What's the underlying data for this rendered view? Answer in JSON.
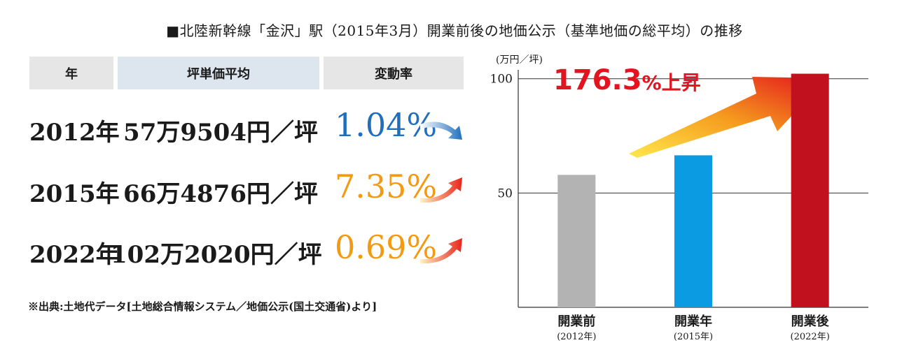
{
  "title": "■北陸新幹線「金沢」駅（2015年3月）開業前後の地価公示（基準地価の総平均）の推移",
  "table": {
    "headers": [
      "年",
      "坪単価平均",
      "変動率"
    ],
    "rows": [
      {
        "year": "2012年",
        "price": "57万9504円／坪",
        "rate": "1.04%",
        "trend": "down",
        "color": "#1f6fbe"
      },
      {
        "year": "2015年",
        "price": "66万4876円／坪",
        "rate": "7.35%",
        "trend": "up",
        "color": "#f39a12"
      },
      {
        "year": "2022年",
        "price": "102万2020円／坪",
        "rate": "0.69%",
        "trend": "up",
        "color": "#f39a12"
      }
    ]
  },
  "note": "※出典:土地代データ[土地総合情報システム／地価公示(国土交通省)より]",
  "chart_data": {
    "type": "bar",
    "unit_label": "(万円／坪)",
    "categories": [
      "開業前",
      "開業年",
      "開業後"
    ],
    "sub_labels": [
      "(2012年)",
      "(2015年)",
      "(2022年)"
    ],
    "values": [
      57.95,
      66.49,
      102.2
    ],
    "colors": [
      "#b3b3b3",
      "#0a9be2",
      "#c1111f"
    ],
    "yticks": [
      50,
      100
    ],
    "ylim": [
      0,
      110
    ],
    "grid": true,
    "annotation": {
      "value": "176.3",
      "suffix": "%上昇"
    }
  }
}
